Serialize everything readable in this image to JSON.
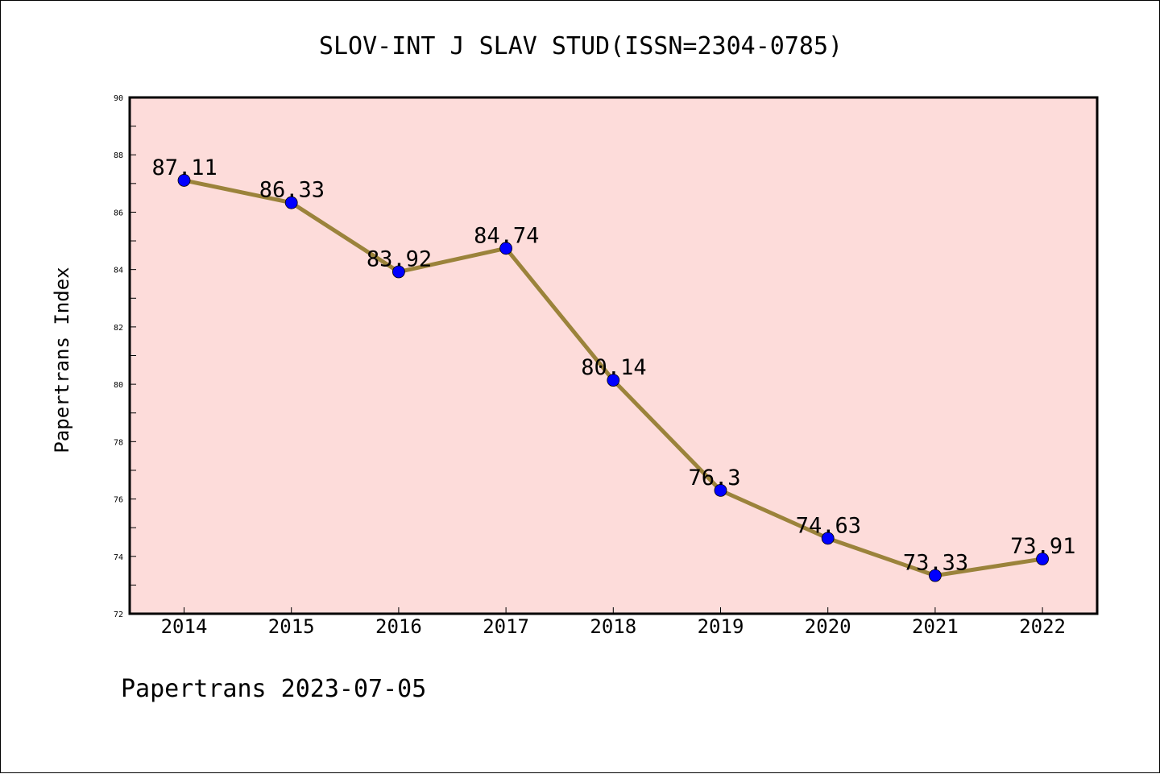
{
  "chart_data": {
    "type": "line",
    "title": "SLOV-INT J SLAV STUD(ISSN=2304-0785)",
    "xlabel": "",
    "ylabel": "Papertrans Index",
    "categories": [
      "2014",
      "2015",
      "2016",
      "2017",
      "2018",
      "2019",
      "2020",
      "2021",
      "2022"
    ],
    "series": [
      {
        "values": [
          87.11,
          86.33,
          83.92,
          84.74,
          80.14,
          76.3,
          74.63,
          73.33,
          73.91
        ],
        "labels": [
          "87.11",
          "86.33",
          "83.92",
          "84.74",
          "80.14",
          "76.3",
          "74.63",
          "73.33",
          "73.91"
        ]
      }
    ],
    "ylim": [
      72,
      90
    ],
    "yticks": [
      "72",
      "74",
      "76",
      "78",
      "80",
      "82",
      "84",
      "86",
      "88",
      "90"
    ],
    "grid": false,
    "colors": {
      "plot_background": "#fddcda",
      "line": "#9b833b",
      "marker": "#0000ff"
    }
  },
  "footer": "Papertrans 2023-07-05"
}
